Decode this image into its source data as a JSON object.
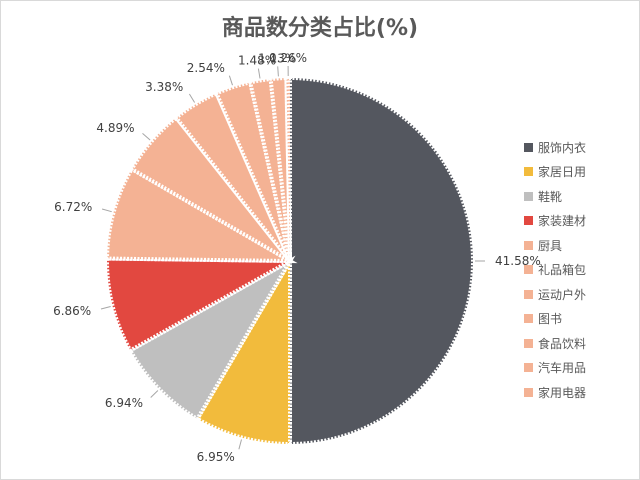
{
  "chart_data": {
    "type": "pie",
    "title": "商品数分类占比(%)",
    "legend_position": "right",
    "slices": [
      {
        "label": "服饰内衣",
        "value": 41.58,
        "display": "41.58%",
        "color": "#54575f"
      },
      {
        "label": "家居日用",
        "value": 6.95,
        "display": "6.95%",
        "color": "#f2bb3c"
      },
      {
        "label": "鞋靴",
        "value": 6.94,
        "display": "6.94%",
        "color": "#bfbfbf"
      },
      {
        "label": "家装建材",
        "value": 6.86,
        "display": "6.86%",
        "color": "#e24840"
      },
      {
        "label": "厨具",
        "value": 6.72,
        "display": "6.72%",
        "color": "#f4b294"
      },
      {
        "label": "礼品箱包",
        "value": 4.89,
        "display": "4.89%",
        "color": "#f4b294"
      },
      {
        "label": "运动户外",
        "value": 3.38,
        "display": "3.38%",
        "color": "#f4b294"
      },
      {
        "label": "图书",
        "value": 2.54,
        "display": "2.54%",
        "color": "#f4b294"
      },
      {
        "label": "食品饮料",
        "value": 1.48,
        "display": "1.48%",
        "color": "#f4b294"
      },
      {
        "label": "汽车用品",
        "value": 1.13,
        "display": "1.13%",
        "color": "#f4b294"
      },
      {
        "label": "家用电器",
        "value": 0.26,
        "display": "0.26%",
        "color": "#f4b294"
      }
    ]
  }
}
